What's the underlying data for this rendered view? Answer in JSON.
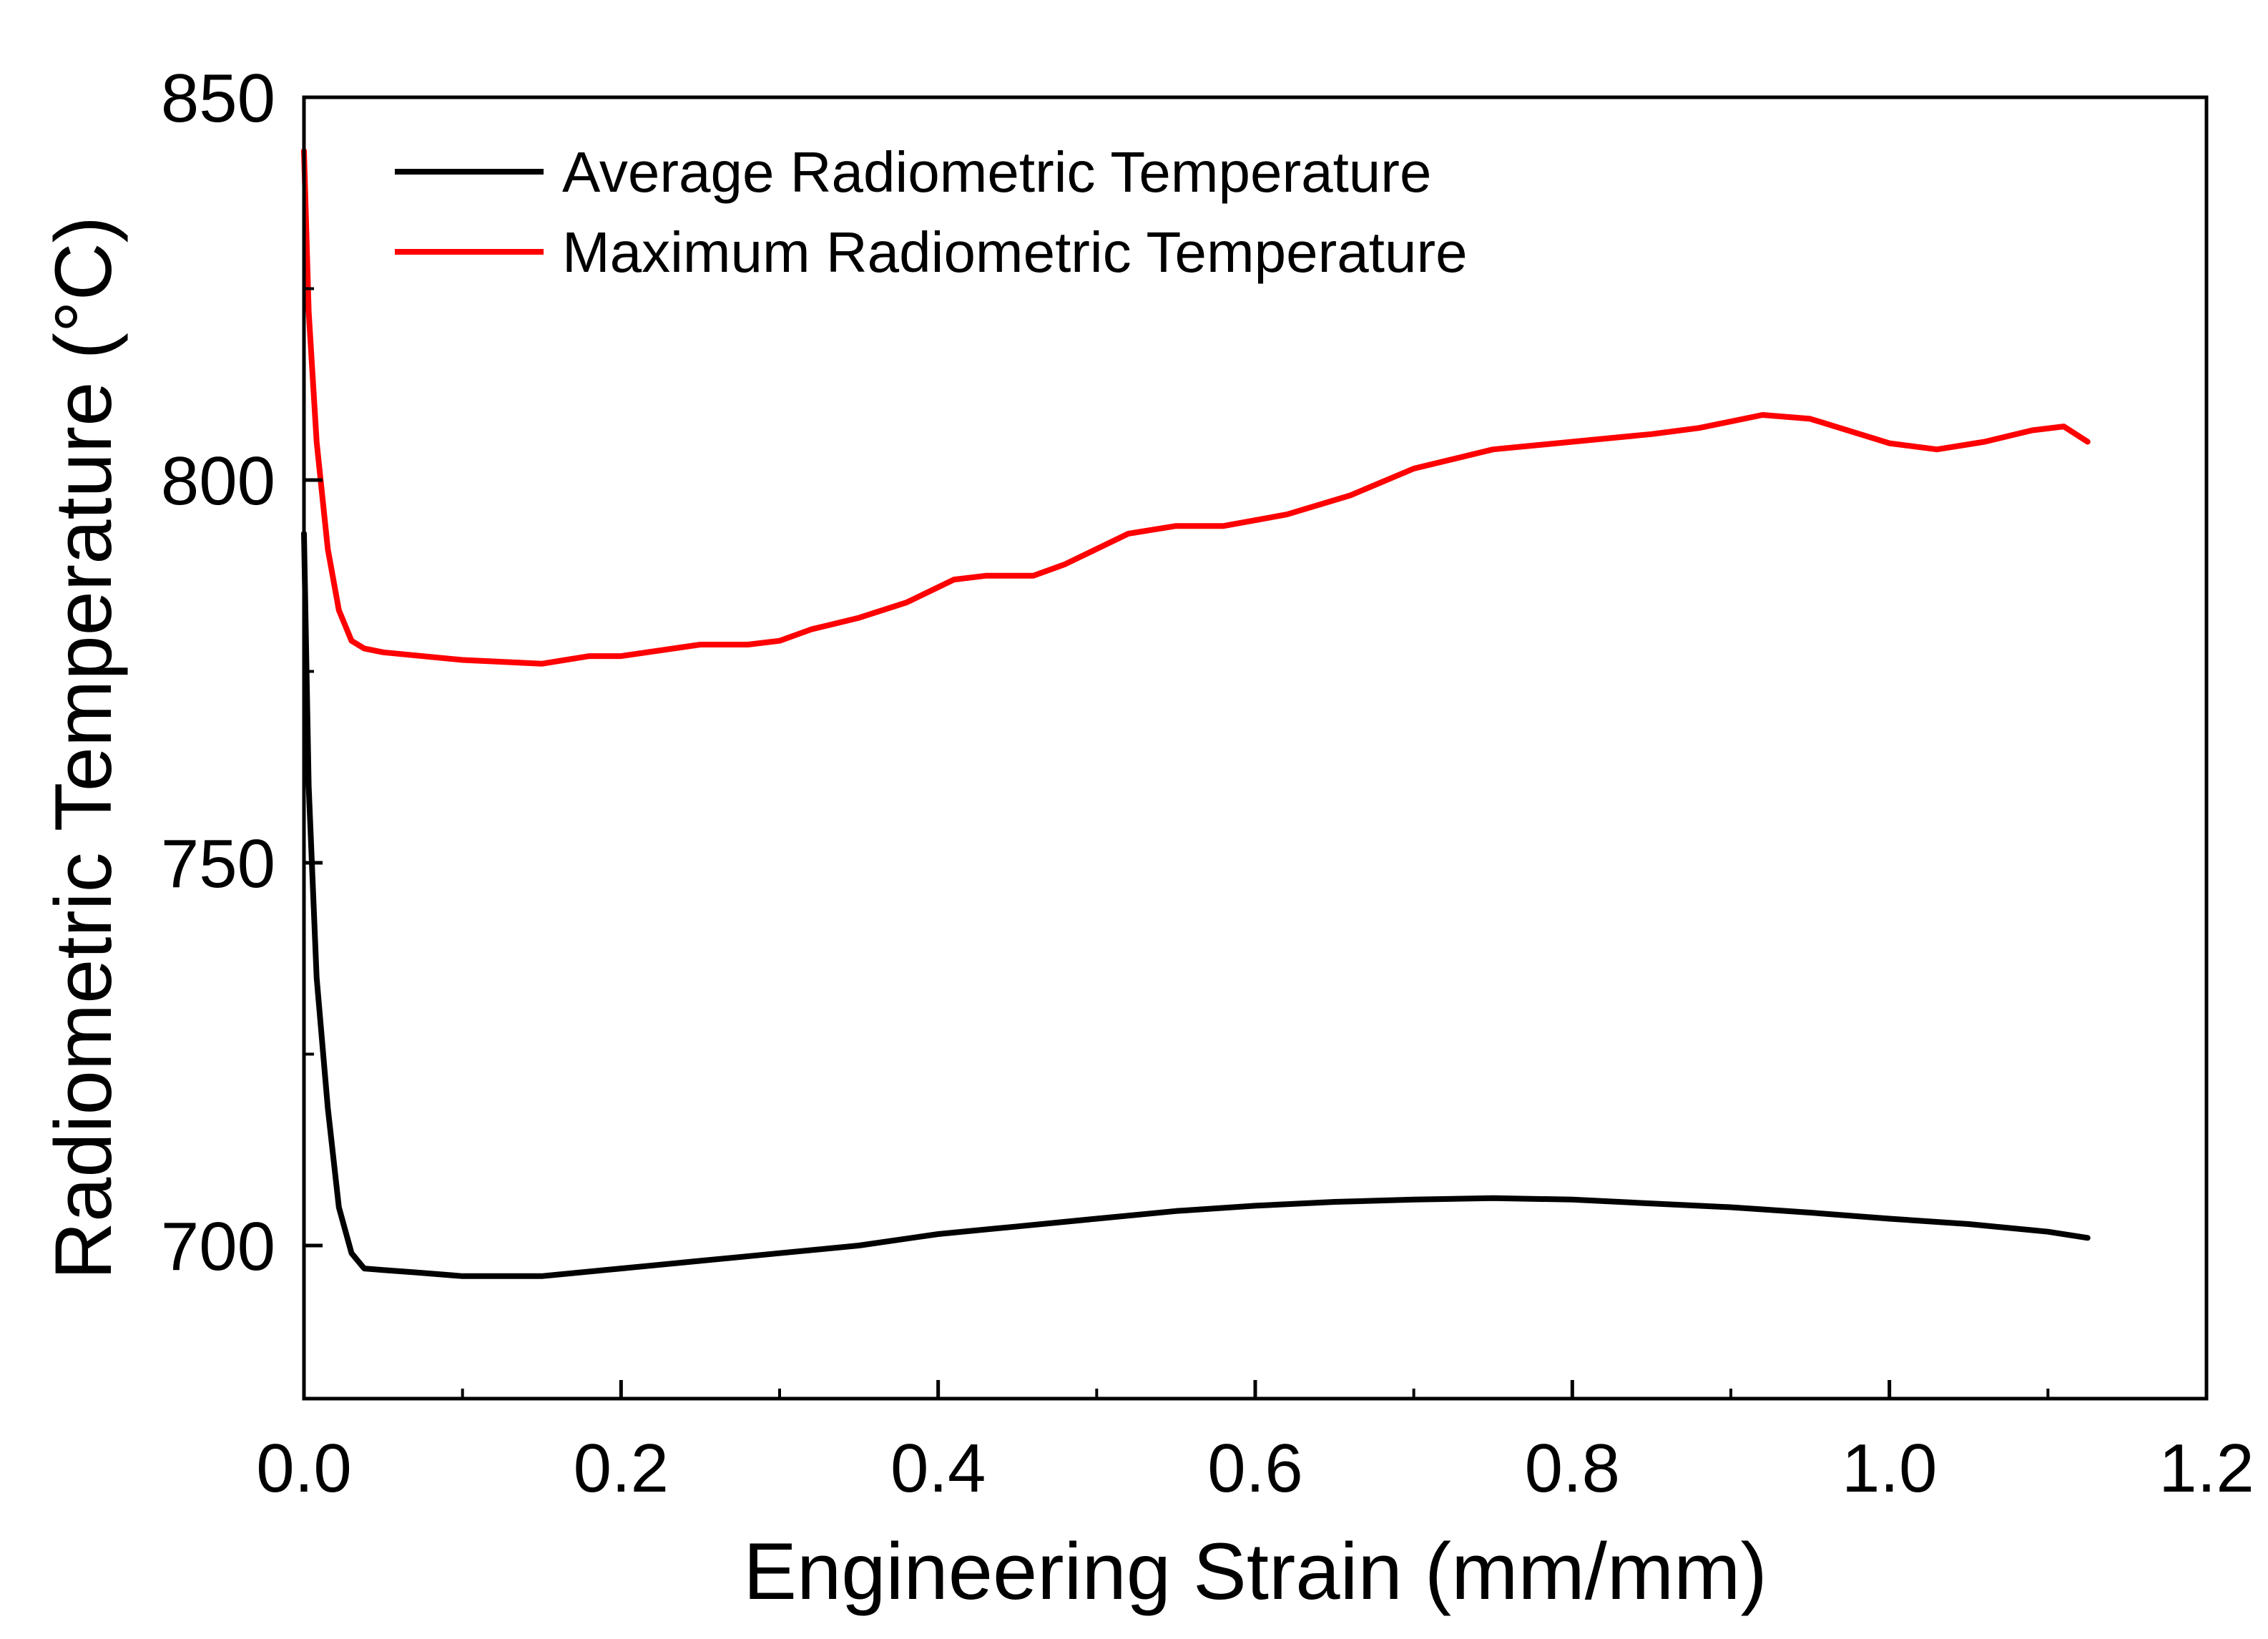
{
  "chart_data": {
    "type": "line",
    "title": "",
    "xlabel": "Engineering Strain (mm/mm)",
    "ylabel": "Radiometric Temperature (°C)",
    "xlim": [
      0.0,
      1.2
    ],
    "ylim": [
      680,
      850
    ],
    "x_ticks": [
      0.0,
      0.2,
      0.4,
      0.6,
      0.8,
      1.0,
      1.2
    ],
    "x_tick_labels": [
      "0.0",
      "0.2",
      "0.4",
      "0.6",
      "0.8",
      "1.0",
      "1.2"
    ],
    "y_ticks": [
      700,
      750,
      800,
      850
    ],
    "y_tick_labels": [
      "700",
      "750",
      "800",
      "850"
    ],
    "grid": false,
    "legend_position": "top-left",
    "series": [
      {
        "name": "Average Radiometric Temperature",
        "color": "#000000",
        "x": [
          0.0,
          0.003,
          0.008,
          0.015,
          0.022,
          0.03,
          0.038,
          0.05,
          0.07,
          0.1,
          0.15,
          0.2,
          0.25,
          0.3,
          0.35,
          0.4,
          0.45,
          0.5,
          0.55,
          0.6,
          0.65,
          0.7,
          0.75,
          0.8,
          0.85,
          0.9,
          0.95,
          1.0,
          1.05,
          1.1,
          1.125
        ],
        "y": [
          793,
          760,
          735,
          718,
          705,
          699,
          697,
          696.8,
          696.5,
          696,
          696,
          697,
          698,
          699,
          700,
          701.5,
          702.5,
          703.5,
          704.5,
          705.2,
          705.7,
          706,
          706.2,
          706,
          705.5,
          705,
          704.3,
          703.5,
          702.8,
          701.8,
          701
        ]
      },
      {
        "name": "Maximum Radiometric Temperature",
        "color": "#ff0000",
        "x": [
          0.0,
          0.003,
          0.008,
          0.015,
          0.022,
          0.03,
          0.038,
          0.05,
          0.1,
          0.15,
          0.18,
          0.2,
          0.25,
          0.28,
          0.3,
          0.32,
          0.35,
          0.38,
          0.41,
          0.43,
          0.46,
          0.48,
          0.52,
          0.55,
          0.58,
          0.62,
          0.66,
          0.7,
          0.75,
          0.8,
          0.85,
          0.88,
          0.92,
          0.95,
          1.0,
          1.03,
          1.06,
          1.09,
          1.11,
          1.125
        ],
        "y": [
          843,
          822,
          805,
          791,
          783,
          779,
          778,
          777.5,
          776.5,
          776,
          777,
          777,
          778.5,
          778.5,
          779,
          780.5,
          782,
          784,
          787,
          787.5,
          787.5,
          789,
          793,
          794,
          794,
          795.5,
          798,
          801.5,
          804,
          805,
          806,
          806.8,
          808.5,
          808,
          804.8,
          804,
          805,
          806.5,
          807,
          805
        ]
      }
    ]
  }
}
